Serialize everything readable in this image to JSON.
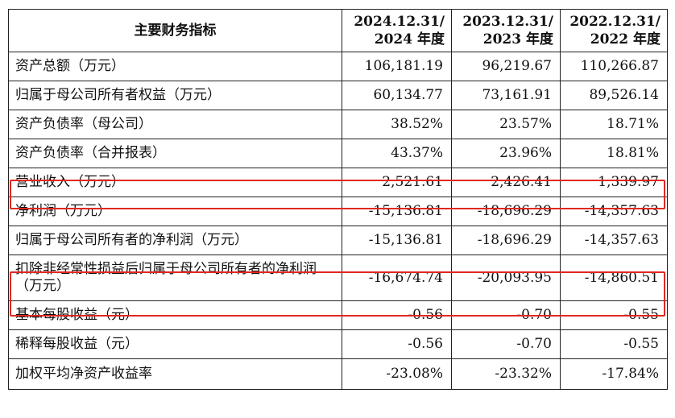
{
  "header": {
    "indicator": "主要财务指标",
    "col1_date": "2024.12.31/",
    "col1_year": "2024 年度",
    "col2_date": "2023.12.31/",
    "col2_year": "2023 年度",
    "col3_date": "2022.12.31/",
    "col3_year": "2022 年度"
  },
  "rows": [
    {
      "label": "资产总额（万元）",
      "v2024": "106,181.19",
      "v2023": "96,219.67",
      "v2022": "110,266.87"
    },
    {
      "label": "归属于母公司所有者权益（万元）",
      "v2024": "60,134.77",
      "v2023": "73,161.91",
      "v2022": "89,526.14"
    },
    {
      "label": "资产负债率（母公司）",
      "v2024": "38.52%",
      "v2023": "23.57%",
      "v2022": "18.71%"
    },
    {
      "label": "资产负债率（合并报表）",
      "v2024": "43.37%",
      "v2023": "23.96%",
      "v2022": "18.81%"
    },
    {
      "label": "营业收入（万元）",
      "v2024": "2,521.61",
      "v2023": "2,426.41",
      "v2022": "1,339.97"
    },
    {
      "label": "净利润（万元）",
      "v2024": "-15,136.81",
      "v2023": "-18,696.29",
      "v2022": "-14,357.63"
    },
    {
      "label": "归属于母公司所有者的净利润（万元）",
      "v2024": "-15,136.81",
      "v2023": "-18,696.29",
      "v2022": "-14,357.63"
    },
    {
      "label": "扣除非经常性损益后归属于母公司所有者的净利润（万元）",
      "v2024": "-16,674.74",
      "v2023": "-20,093.95",
      "v2022": "-14,860.51"
    },
    {
      "label": "基本每股收益（元）",
      "v2024": "-0.56",
      "v2023": "-0.70",
      "v2022": "-0.55"
    },
    {
      "label": "稀释每股收益（元）",
      "v2024": "-0.56",
      "v2023": "-0.70",
      "v2022": "-0.55"
    },
    {
      "label": "加权平均净资产收益率",
      "v2024": "-23.08%",
      "v2023": "-23.32%",
      "v2022": "-17.84%"
    }
  ],
  "highlight_color": "#e1281f"
}
